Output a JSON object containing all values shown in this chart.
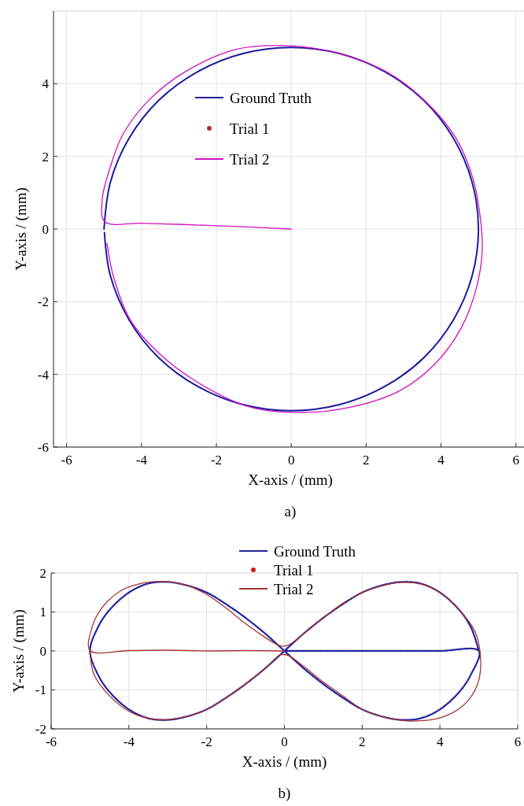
{
  "chart_data": [
    {
      "type": "line",
      "xlabel": "X-axis / (mm)",
      "ylabel": "Y-axis / (mm)",
      "annotations": [
        "a)"
      ],
      "xlim": [
        -6.35,
        6.3
      ],
      "ylim": [
        -6,
        6
      ],
      "xticks": [
        -6,
        -4,
        -2,
        0,
        2,
        4,
        6
      ],
      "yticks": [
        -6,
        -4,
        -2,
        0,
        2,
        4
      ],
      "grid": true,
      "legend": "top",
      "series": [
        {
          "name": "Ground Truth",
          "color": "#1c1c9c",
          "x": [
            -5,
            -4.83,
            -4.33,
            -3.54,
            -2.5,
            -1.29,
            0,
            1.29,
            2.5,
            3.54,
            4.33,
            4.83,
            5,
            4.83,
            4.33,
            3.54,
            2.5,
            1.29,
            0,
            -1.29,
            -2.5,
            -3.54,
            -4.33,
            -4.83,
            -4.99
          ],
          "values": [
            0,
            1.29,
            2.5,
            3.54,
            4.33,
            4.83,
            5,
            4.83,
            4.33,
            3.54,
            2.5,
            1.29,
            0,
            -1.29,
            -2.5,
            -3.54,
            -4.33,
            -4.83,
            -5,
            -4.83,
            -4.33,
            -3.54,
            -2.5,
            -1.29,
            -0.1
          ]
        },
        {
          "name": "Trial 1",
          "marker": "circle",
          "color": "#b0302a"
        },
        {
          "name": "Trial 2",
          "color": "#d010c0",
          "x": [
            0,
            -1,
            -2,
            -3,
            -4,
            -4.98,
            -5.05,
            -4.85,
            -4.5,
            -3.8,
            -2.8,
            -1.45,
            -0.3,
            1,
            2.5,
            3.6,
            4.4,
            4.85,
            5.05,
            5.1,
            4.95,
            4.55,
            3.85,
            2.9,
            1.6,
            0.3,
            -1.1,
            -2.45,
            -3.5,
            -4.3,
            -4.75,
            -4.92
          ],
          "values": [
            0,
            0.05,
            0.09,
            0.13,
            0.16,
            0.2,
            0.8,
            1.65,
            2.6,
            3.55,
            4.35,
            4.95,
            5.05,
            4.9,
            4.35,
            3.5,
            2.5,
            1.4,
            0.3,
            -0.6,
            -1.6,
            -2.7,
            -3.7,
            -4.45,
            -4.9,
            -5.05,
            -4.9,
            -4.25,
            -3.45,
            -2.5,
            -1.3,
            -0.4
          ]
        }
      ]
    },
    {
      "type": "line",
      "xlabel": "X-axis / (mm)",
      "ylabel": "Y-axis / (mm)",
      "annotations": [
        "b)"
      ],
      "xlim": [
        -6,
        6
      ],
      "ylim": [
        -2,
        2
      ],
      "xticks": [
        -6,
        -4,
        -2,
        0,
        2,
        4,
        6
      ],
      "yticks": [
        -2,
        -1,
        0,
        1,
        2
      ],
      "grid": true,
      "legend": "top",
      "series": [
        {
          "name": "Ground Truth",
          "line_style": "dotted",
          "color": "#2020a0",
          "x": [
            0,
            1,
            2,
            3,
            4,
            5,
            4.8,
            4.5,
            4,
            3.5,
            3,
            2.5,
            2,
            1.5,
            1,
            0.5,
            0,
            -0.5,
            -1,
            -1.5,
            -2,
            -2.5,
            -3,
            -3.5,
            -4,
            -4.5,
            -4.8,
            -5,
            -4.8,
            -4.5,
            -4,
            -3.5,
            -3,
            -2.5,
            -2,
            -1.5,
            -1,
            -0.5,
            0,
            0.5,
            1,
            1.5,
            2,
            2.5,
            3,
            3.5,
            4,
            4.5,
            4.8,
            5
          ],
          "values": [
            0,
            0,
            0,
            0,
            0,
            0,
            -0.6,
            -1.05,
            -1.5,
            -1.73,
            -1.77,
            -1.68,
            -1.5,
            -1.2,
            -0.85,
            -0.45,
            0,
            0.45,
            0.85,
            1.2,
            1.5,
            1.68,
            1.77,
            1.73,
            1.5,
            1.05,
            0.6,
            0,
            -0.6,
            -1.05,
            -1.5,
            -1.73,
            -1.77,
            -1.68,
            -1.5,
            -1.2,
            -0.85,
            -0.45,
            0,
            0.45,
            0.85,
            1.2,
            1.5,
            1.68,
            1.77,
            1.73,
            1.5,
            1.05,
            0.6,
            0
          ]
        },
        {
          "name": "Trial 1",
          "marker": "circle",
          "color": "#d01818"
        },
        {
          "name": "Trial 2",
          "color": "#a83434",
          "x": [
            0,
            -1,
            -2,
            -3,
            -4,
            -5,
            -4.95,
            -4.7,
            -4.2,
            -3.6,
            -3,
            -2.5,
            -2,
            -1.5,
            -1,
            -0.5,
            -0.1,
            0.1,
            0.5,
            1,
            1.5,
            2,
            2.5,
            3,
            3.5,
            4,
            4.5,
            4.9,
            5.05,
            4.95,
            4.6,
            4,
            3.3,
            3,
            2.5,
            2,
            1.5,
            1,
            0.5,
            0.1,
            -0.1,
            -0.5,
            -1,
            -1.5,
            -2,
            -2.5,
            -3,
            -3.5,
            -4,
            -4.5,
            -4.9,
            -5
          ],
          "values": [
            0,
            0.01,
            0,
            0.02,
            0.01,
            0.01,
            0.6,
            1.1,
            1.55,
            1.75,
            1.78,
            1.68,
            1.45,
            1.1,
            0.7,
            0.35,
            0.13,
            0.15,
            0.45,
            0.85,
            1.22,
            1.5,
            1.67,
            1.76,
            1.72,
            1.5,
            1.05,
            0.5,
            -0.3,
            -0.9,
            -1.4,
            -1.72,
            -1.8,
            -1.78,
            -1.68,
            -1.5,
            -1.15,
            -0.8,
            -0.4,
            -0.12,
            -0.1,
            -0.45,
            -0.85,
            -1.2,
            -1.5,
            -1.68,
            -1.76,
            -1.73,
            -1.55,
            -1.15,
            -0.6,
            0
          ]
        }
      ]
    }
  ]
}
